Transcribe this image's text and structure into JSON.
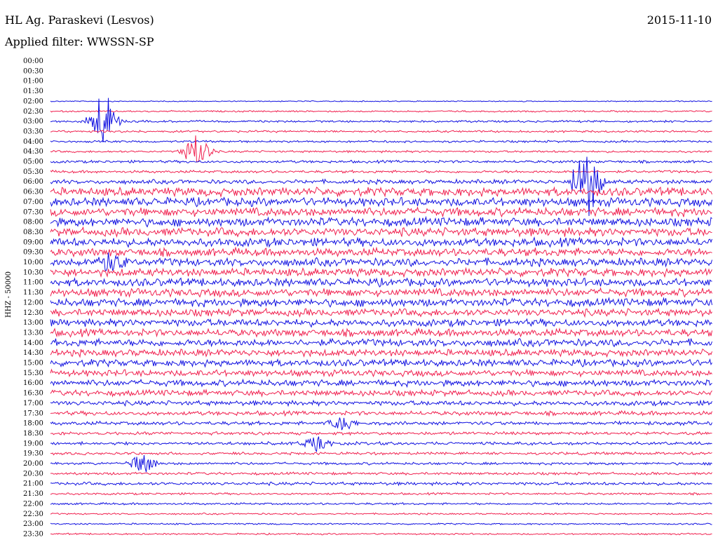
{
  "header": {
    "station": "HL Ag. Paraskevi (Lesvos)",
    "date": "2015-11-10",
    "filter": "Applied filter: WWSSN-SP"
  },
  "colors": {
    "blue": "#1010e0",
    "red": "#f0204f"
  },
  "chart_data": {
    "type": "line",
    "title": "HL Ag. Paraskevi (Lesvos)",
    "ylabel": "HHZ - 50000",
    "xlabel": "",
    "rows": [
      "00:00",
      "00:30",
      "01:00",
      "01:30",
      "02:00",
      "02:30",
      "03:00",
      "03:30",
      "04:00",
      "04:30",
      "05:00",
      "05:30",
      "06:00",
      "06:30",
      "07:00",
      "07:30",
      "08:00",
      "08:30",
      "09:00",
      "09:30",
      "10:00",
      "10:30",
      "11:00",
      "11:30",
      "12:00",
      "12:30",
      "13:00",
      "13:30",
      "14:00",
      "14:30",
      "15:00",
      "15:30",
      "16:00",
      "16:30",
      "17:00",
      "17:30",
      "18:00",
      "18:30",
      "19:00",
      "19:30",
      "20:00",
      "20:30",
      "21:00",
      "21:30",
      "22:00",
      "22:30",
      "23:00",
      "23:30"
    ],
    "row_colors": [
      "red",
      "blue"
    ],
    "row_first_color": "blue",
    "data_start_row": "02:00",
    "amplitude_profile": [
      0,
      0,
      0,
      0,
      0.2,
      0.3,
      0.4,
      0.4,
      0.4,
      0.4,
      0.5,
      0.5,
      0.8,
      1.6,
      1.6,
      1.6,
      1.6,
      1.6,
      1.6,
      1.5,
      1.5,
      1.5,
      1.5,
      1.5,
      1.5,
      1.4,
      1.4,
      1.4,
      1.4,
      1.3,
      1.3,
      1.2,
      1.2,
      1.1,
      0.9,
      0.8,
      0.7,
      0.6,
      0.6,
      0.5,
      0.5,
      0.5,
      0.6,
      0.4,
      0.4,
      0.3,
      0.3,
      0.3
    ],
    "events": [
      {
        "row": "03:00",
        "position": 0.08,
        "amplitude": 8
      },
      {
        "row": "04:30",
        "position": 0.22,
        "amplitude": 5
      },
      {
        "row": "06:00",
        "position": 0.81,
        "amplitude": 10
      },
      {
        "row": "10:00",
        "position": 0.09,
        "amplitude": 3
      },
      {
        "row": "19:00",
        "position": 0.4,
        "amplitude": 2
      },
      {
        "row": "20:00",
        "position": 0.14,
        "amplitude": 2.5
      },
      {
        "row": "18:00",
        "position": 0.44,
        "amplitude": 2
      }
    ]
  }
}
